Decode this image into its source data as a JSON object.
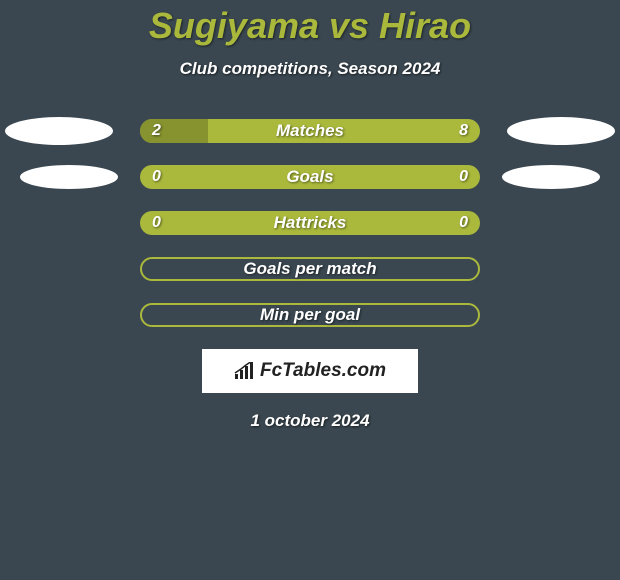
{
  "title": "Sugiyama vs Hirao",
  "subtitle": "Club competitions, Season 2024",
  "date": "1 october 2024",
  "logo": "FcTables.com",
  "colors": {
    "background": "#3a4750",
    "accent": "#aab93c",
    "accent_dark": "#87932f",
    "white": "#ffffff"
  },
  "stats": [
    {
      "label": "Matches",
      "left_val": "2",
      "right_val": "8",
      "left_pct": 20,
      "right_pct": 0,
      "show_vals": true,
      "filled": true,
      "show_left_ellipse": true,
      "show_right_ellipse": true,
      "ellipse_small": false
    },
    {
      "label": "Goals",
      "left_val": "0",
      "right_val": "0",
      "left_pct": 0,
      "right_pct": 0,
      "show_vals": true,
      "filled": true,
      "show_left_ellipse": true,
      "show_right_ellipse": true,
      "ellipse_small": true
    },
    {
      "label": "Hattricks",
      "left_val": "0",
      "right_val": "0",
      "left_pct": 0,
      "right_pct": 0,
      "show_vals": true,
      "filled": true,
      "show_left_ellipse": false,
      "show_right_ellipse": false,
      "ellipse_small": false
    },
    {
      "label": "Goals per match",
      "left_val": "",
      "right_val": "",
      "left_pct": 0,
      "right_pct": 0,
      "show_vals": false,
      "filled": false,
      "show_left_ellipse": false,
      "show_right_ellipse": false,
      "ellipse_small": false
    },
    {
      "label": "Min per goal",
      "left_val": "",
      "right_val": "",
      "left_pct": 0,
      "right_pct": 0,
      "show_vals": false,
      "filled": false,
      "show_left_ellipse": false,
      "show_right_ellipse": false,
      "ellipse_small": false
    }
  ]
}
